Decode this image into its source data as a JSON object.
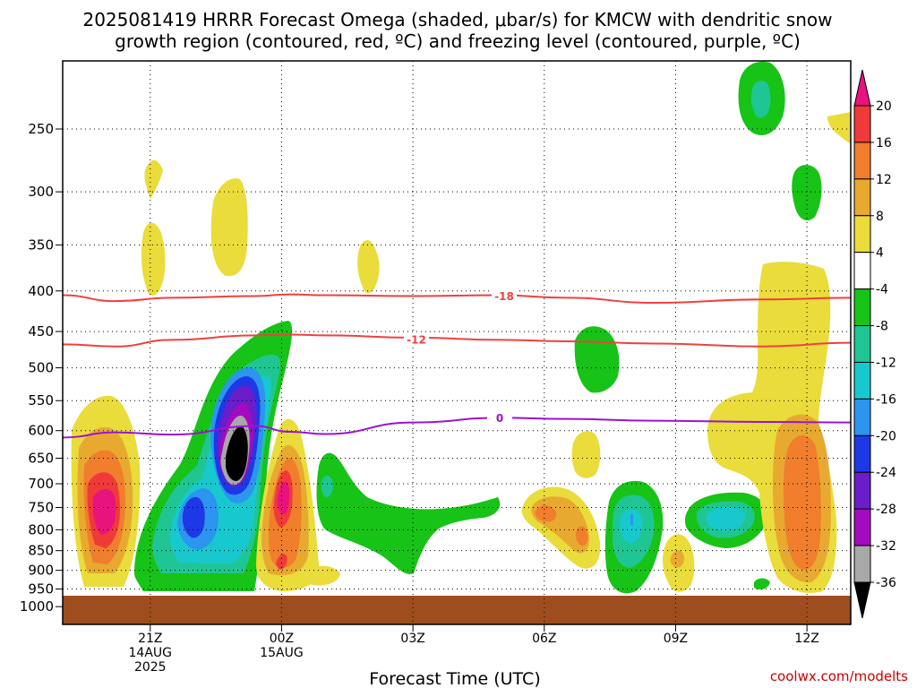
{
  "chart_data": {
    "type": "heatmap",
    "title_lines": [
      "2025081419 HRRR Forecast Omega (shaded, μbar/s) for KMCW with dendritic snow",
      "growth region (contoured, red, ºC) and freezing level (contoured, purple, ºC)"
    ],
    "xlabel": "Forecast Time (UTC)",
    "ylabel": "",
    "y_scale": "pressure (log-p)",
    "y_range": [
      200,
      1010
    ],
    "y_ticks": [
      250,
      300,
      350,
      400,
      450,
      500,
      550,
      600,
      650,
      700,
      750,
      800,
      850,
      900,
      950,
      1000
    ],
    "x_ticks": [
      {
        "hour": 21,
        "lines": [
          "21Z",
          "14AUG",
          "2025"
        ]
      },
      {
        "hour": 24,
        "lines": [
          "00Z",
          "15AUG"
        ]
      },
      {
        "hour": 27,
        "lines": [
          "03Z"
        ]
      },
      {
        "hour": 30,
        "lines": [
          "06Z"
        ]
      },
      {
        "hour": 33,
        "lines": [
          "09Z"
        ]
      },
      {
        "hour": 36,
        "lines": [
          "12Z"
        ]
      }
    ],
    "x_range_hours": [
      19,
      37
    ],
    "colorbar": {
      "labels": [
        "20",
        "16",
        "12",
        "8",
        "4",
        "-4",
        "-8",
        "-12",
        "-16",
        "-20",
        "-24",
        "-28",
        "-32",
        "-36"
      ],
      "colors": [
        "#E8137D",
        "#F03A3A",
        "#F07E2C",
        "#E8A931",
        "#EADC3B",
        "#FFFFFF",
        "#17C317",
        "#1FC693",
        "#18C8CF",
        "#2C95EE",
        "#1E38E6",
        "#6A1DC9",
        "#A40AC0",
        "#A8A8A8",
        "#000000"
      ]
    },
    "contours": [
      {
        "label": "-18",
        "color": "#F04040",
        "pressure": [
          405,
          412,
          408,
          406,
          404,
          405,
          406,
          405,
          408,
          414,
          410,
          408
        ]
      },
      {
        "label": "-12",
        "color": "#F04040",
        "pressure": [
          467,
          470,
          461,
          455,
          454,
          455,
          458,
          461,
          463,
          466,
          470,
          465
        ]
      },
      {
        "label": "0",
        "color": "#9A14D4",
        "pressure": [
          612,
          603,
          607,
          592,
          602,
          606,
          586,
          578,
          580,
          583,
          585,
          586
        ]
      }
    ],
    "contour_hours": [
      19,
      20.2,
      21.5,
      23.4,
      24.2,
      25,
      27,
      29,
      30.5,
      32.5,
      35,
      37
    ],
    "ground_pressure": 970
  },
  "credit": "coolwx.com/modelts"
}
